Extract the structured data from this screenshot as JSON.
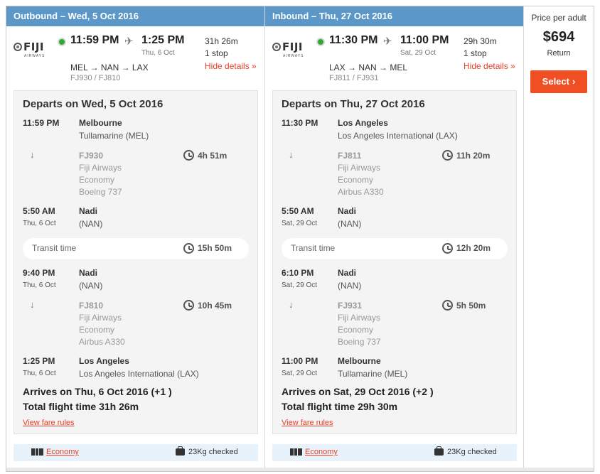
{
  "outbound": {
    "header": "Outbound – Wed, 5 Oct 2016",
    "airline_logo": "FIJI",
    "airline_logo_sub": "AIRWAYS",
    "dep_time": "11:59 PM",
    "arr_time": "1:25 PM",
    "arr_date": "Thu, 6 Oct",
    "duration": "31h 26m",
    "stops": "1 stop",
    "route": "MEL → NAN → LAX",
    "flight_nums": "FJ930 / FJ810",
    "hide_details": "Hide details »",
    "details": {
      "title": "Departs on Wed, 5 Oct 2016",
      "s1": {
        "time": "11:59 PM",
        "date": "",
        "city": "Melbourne",
        "airport": "Tullamarine (MEL)"
      },
      "seg1": {
        "flight": "FJ930",
        "airline": "Fiji Airways",
        "cabin": "Economy",
        "aircraft": "Boeing 737",
        "duration": "4h 51m"
      },
      "s2": {
        "time": "5:50 AM",
        "date": "Thu, 6 Oct",
        "city": "Nadi",
        "airport": "(NAN)"
      },
      "transit": {
        "label": "Transit time",
        "duration": "15h 50m"
      },
      "s3": {
        "time": "9:40 PM",
        "date": "Thu, 6 Oct",
        "city": "Nadi",
        "airport": "(NAN)"
      },
      "seg2": {
        "flight": "FJ810",
        "airline": "Fiji Airways",
        "cabin": "Economy",
        "aircraft": "Airbus A330",
        "duration": "10h 45m"
      },
      "s4": {
        "time": "1:25 PM",
        "date": "Thu, 6 Oct",
        "city": "Los Angeles",
        "airport": "Los Angeles International (LAX)"
      },
      "arrives": "Arrives on Thu, 6 Oct 2016 (+1 )",
      "total": "Total flight time 31h 26m",
      "fare_rules": "View fare rules"
    },
    "footer": {
      "cabin": "Economy",
      "baggage": "23Kg checked"
    }
  },
  "inbound": {
    "header": "Inbound – Thu, 27 Oct 2016",
    "airline_logo": "FIJI",
    "airline_logo_sub": "AIRWAYS",
    "dep_time": "11:30 PM",
    "arr_time": "11:00 PM",
    "arr_date": "Sat, 29 Oct",
    "duration": "29h 30m",
    "stops": "1 stop",
    "route": "LAX → NAN → MEL",
    "flight_nums": "FJ811 / FJ931",
    "hide_details": "Hide details »",
    "details": {
      "title": "Departs on Thu, 27 Oct 2016",
      "s1": {
        "time": "11:30 PM",
        "date": "",
        "city": "Los Angeles",
        "airport": "Los Angeles International (LAX)"
      },
      "seg1": {
        "flight": "FJ811",
        "airline": "Fiji Airways",
        "cabin": "Economy",
        "aircraft": "Airbus A330",
        "duration": "11h 20m"
      },
      "s2": {
        "time": "5:50 AM",
        "date": "Sat, 29 Oct",
        "city": "Nadi",
        "airport": "(NAN)"
      },
      "transit": {
        "label": "Transit time",
        "duration": "12h 20m"
      },
      "s3": {
        "time": "6:10 PM",
        "date": "Sat, 29 Oct",
        "city": "Nadi",
        "airport": "(NAN)"
      },
      "seg2": {
        "flight": "FJ931",
        "airline": "Fiji Airways",
        "cabin": "Economy",
        "aircraft": "Boeing 737",
        "duration": "5h 50m"
      },
      "s4": {
        "time": "11:00 PM",
        "date": "Sat, 29 Oct",
        "city": "Melbourne",
        "airport": "Tullamarine (MEL)"
      },
      "arrives": "Arrives on Sat, 29 Oct 2016 (+2 )",
      "total": "Total flight time 29h 30m",
      "fare_rules": "View fare rules"
    },
    "footer": {
      "cabin": "Economy",
      "baggage": "23Kg checked"
    }
  },
  "price": {
    "label": "Price per adult",
    "value": "$694",
    "sub": "Return",
    "select": "Select",
    "select_chevron": "›"
  },
  "colors": {
    "header_blue": "#5b97c8",
    "accent_orange": "#f04e23",
    "link_red": "#e8402a",
    "status_green": "#2faa2f"
  },
  "icons": {
    "status": "green-dot-icon",
    "plane": "plane-icon",
    "arrow": "down-arrow-icon",
    "clock": "clock-icon",
    "cabin": "seat-icon",
    "bag": "suitcase-icon"
  }
}
